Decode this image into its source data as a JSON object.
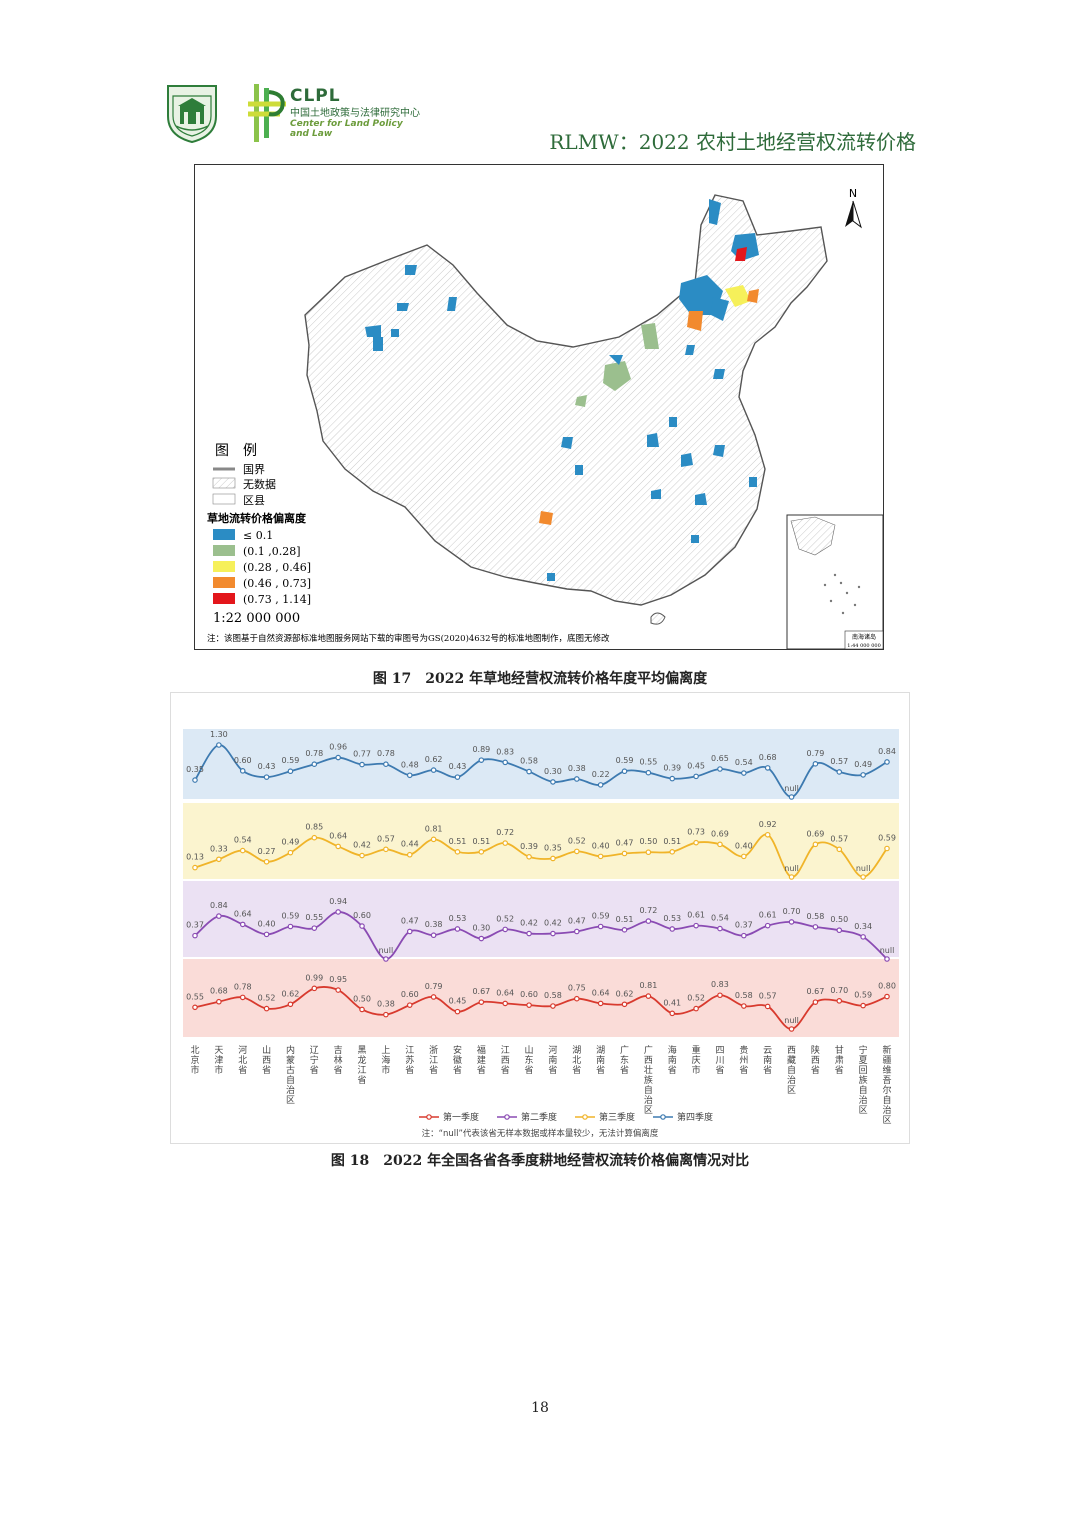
{
  "header": {
    "title": "RLMW：2022 农村土地经营权流转价格",
    "clpl_abbr": "CLPL",
    "clpl_cn": "中国土地政策与法律研究中心",
    "clpl_en": "Center for Land Policy and Law"
  },
  "map": {
    "north": "N",
    "legend_title": "图　例",
    "legend_items": [
      {
        "label": "国界",
        "kind": "line"
      },
      {
        "label": "无数据",
        "kind": "hatch"
      },
      {
        "label": "区县",
        "kind": "blank"
      }
    ],
    "class_title": "草地流转价格偏离度",
    "classes": [
      {
        "label": "≤ 0.1",
        "color": "#2b8cc4"
      },
      {
        "label": "(0.1 ,0.28]",
        "color": "#9bbf8e"
      },
      {
        "label": "(0.28 , 0.46]",
        "color": "#f6f05a"
      },
      {
        "label": "(0.46 , 0.73]",
        "color": "#f28a2e"
      },
      {
        "label": "(0.73 , 1.14]",
        "color": "#e3161b"
      }
    ],
    "scale": "1:22 000 000",
    "note": "注：该图基于自然资源部标准地图服务网站下载的审图号为GS(2020)4632号的标准地图制作，底图无修改",
    "inset_label": "南海诸岛",
    "inset_scale": "1:44 000 000"
  },
  "captions": {
    "fig17": "图 17　2022 年草地经营权流转价格年度平均偏离度",
    "fig18": "图 18　2022 年全国各省各季度耕地经营权流转价格偏离情况对比"
  },
  "chart_data": {
    "type": "line",
    "categories": [
      "北京市",
      "天津市",
      "河北省",
      "山西省",
      "内蒙古自治区",
      "辽宁省",
      "吉林省",
      "黑龙江省",
      "上海市",
      "江苏省",
      "浙江省",
      "安徽省",
      "福建省",
      "江西省",
      "山东省",
      "河南省",
      "湖北省",
      "湖南省",
      "广东省",
      "广西壮族自治区",
      "海南省",
      "重庆市",
      "四川省",
      "贵州省",
      "云南省",
      "西藏自治区",
      "陕西省",
      "甘肃省",
      "宁夏回族自治区",
      "新疆维吾尔自治区"
    ],
    "series": [
      {
        "name": "第四季度",
        "color": "#3d7ab0",
        "band": "#dce9f5",
        "values": [
          0.35,
          1.3,
          0.6,
          0.43,
          0.59,
          0.78,
          0.96,
          0.77,
          0.78,
          0.48,
          0.62,
          0.43,
          0.89,
          0.83,
          0.58,
          0.3,
          0.38,
          0.22,
          0.59,
          0.55,
          0.39,
          0.45,
          0.65,
          0.54,
          0.68,
          null,
          0.79,
          0.57,
          0.49,
          0.84
        ]
      },
      {
        "name": "第三季度",
        "color": "#f0b429",
        "band": "#fbf4cf",
        "values": [
          0.13,
          0.33,
          0.54,
          0.27,
          0.49,
          0.85,
          0.64,
          0.42,
          0.57,
          0.44,
          0.81,
          0.51,
          0.51,
          0.72,
          0.39,
          0.35,
          0.52,
          0.4,
          0.47,
          0.5,
          0.51,
          0.73,
          0.69,
          0.4,
          0.92,
          null,
          0.69,
          0.57,
          null,
          0.59
        ]
      },
      {
        "name": "第二季度",
        "color": "#8a4bb3",
        "band": "#ebe1f3",
        "values": [
          0.37,
          0.84,
          0.64,
          0.4,
          0.59,
          0.55,
          0.94,
          0.6,
          null,
          0.47,
          0.38,
          0.53,
          0.3,
          0.52,
          0.42,
          0.42,
          0.47,
          0.59,
          0.51,
          0.72,
          0.53,
          0.61,
          0.54,
          0.37,
          0.61,
          0.7,
          0.58,
          0.5,
          0.34,
          null
        ]
      },
      {
        "name": "第一季度",
        "color": "#d83a2e",
        "band": "#fadcd8",
        "values": [
          0.55,
          0.68,
          0.78,
          0.52,
          0.62,
          0.99,
          0.95,
          0.5,
          0.38,
          0.6,
          0.79,
          0.45,
          0.67,
          0.64,
          0.6,
          0.58,
          0.75,
          0.64,
          0.62,
          0.81,
          0.41,
          0.52,
          0.83,
          0.58,
          0.57,
          null,
          0.67,
          0.7,
          0.59,
          0.8
        ]
      }
    ],
    "legend_order": [
      "第一季度",
      "第二季度",
      "第三季度",
      "第四季度"
    ],
    "null_label": "null",
    "note": "注：“null”代表该省无样本数据或样本量较少，无法计算偏离度"
  },
  "page_number": "18"
}
